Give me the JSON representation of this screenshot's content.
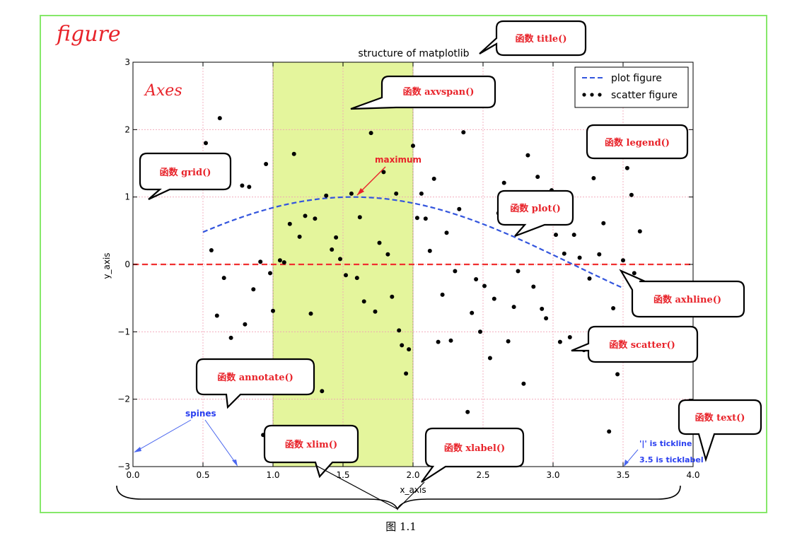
{
  "figure_label": "figure",
  "axes_label": "Axes",
  "caption": "图 1.1",
  "chart_data": {
    "type": "scatter",
    "title": "structure of matplotlib",
    "xlabel": "x_axis",
    "ylabel": "y_axis",
    "xlim": [
      0.0,
      4.0
    ],
    "ylim": [
      -3,
      3
    ],
    "xticks": [
      "0.0",
      "0.5",
      "1.0",
      "1.5",
      "2.0",
      "2.5",
      "3.0",
      "3.5",
      "4.0"
    ],
    "yticks": [
      "3",
      "2",
      "1",
      "0",
      "−1",
      "−2",
      "−3"
    ],
    "grid": true,
    "legend": {
      "position": "upper-right",
      "entries": [
        {
          "label": "plot figure",
          "marker": "dashed-line",
          "color": "#3355dd"
        },
        {
          "label": "scatter figure",
          "marker": "dots",
          "color": "#000000"
        }
      ]
    },
    "axvspan": {
      "xmin": 1.0,
      "xmax": 2.0,
      "color": "#e4f59c"
    },
    "axhline": {
      "y": 0,
      "color": "#f03030",
      "style": "dashed"
    },
    "plot_line": {
      "function": "sin",
      "x_start": 0.5,
      "x_end": 3.5,
      "color": "#3355dd",
      "style": "dashed"
    },
    "annotation": {
      "text": "maximum",
      "x": 1.57,
      "y": 1.0,
      "color": "#e8232a"
    },
    "scatter_points": [
      [
        0.52,
        1.8
      ],
      [
        0.56,
        0.21
      ],
      [
        0.62,
        2.17
      ],
      [
        0.65,
        -0.2
      ],
      [
        0.68,
        1.43
      ],
      [
        0.7,
        -1.09
      ],
      [
        0.78,
        1.17
      ],
      [
        0.83,
        1.15
      ],
      [
        0.86,
        -0.37
      ],
      [
        0.91,
        0.04
      ],
      [
        0.95,
        1.49
      ],
      [
        0.98,
        -0.13
      ],
      [
        1.0,
        -0.69
      ],
      [
        1.05,
        0.06
      ],
      [
        1.08,
        0.03
      ],
      [
        1.12,
        0.6
      ],
      [
        1.15,
        1.64
      ],
      [
        1.19,
        0.41
      ],
      [
        1.23,
        0.72
      ],
      [
        1.27,
        -0.73
      ],
      [
        1.3,
        0.68
      ],
      [
        1.35,
        -1.88
      ],
      [
        1.38,
        1.02
      ],
      [
        1.42,
        0.22
      ],
      [
        1.45,
        0.4
      ],
      [
        1.48,
        0.08
      ],
      [
        1.52,
        -0.16
      ],
      [
        1.56,
        1.05
      ],
      [
        1.6,
        -0.2
      ],
      [
        1.62,
        0.7
      ],
      [
        1.65,
        -0.55
      ],
      [
        1.7,
        1.95
      ],
      [
        1.73,
        -0.7
      ],
      [
        1.76,
        0.32
      ],
      [
        1.79,
        1.37
      ],
      [
        1.82,
        0.15
      ],
      [
        1.85,
        -0.48
      ],
      [
        1.88,
        1.05
      ],
      [
        1.9,
        -0.98
      ],
      [
        1.92,
        -1.2
      ],
      [
        1.95,
        -1.62
      ],
      [
        1.97,
        -1.26
      ],
      [
        2.0,
        1.76
      ],
      [
        2.03,
        0.69
      ],
      [
        2.06,
        1.05
      ],
      [
        2.09,
        0.68
      ],
      [
        2.12,
        0.2
      ],
      [
        2.15,
        1.27
      ],
      [
        2.18,
        -1.15
      ],
      [
        2.21,
        -0.45
      ],
      [
        2.24,
        0.47
      ],
      [
        2.27,
        -1.13
      ],
      [
        2.3,
        -0.1
      ],
      [
        2.33,
        0.82
      ],
      [
        2.36,
        1.96
      ],
      [
        2.39,
        -2.19
      ],
      [
        2.42,
        -0.72
      ],
      [
        2.45,
        -0.22
      ],
      [
        2.48,
        -1.0
      ],
      [
        2.51,
        -0.32
      ],
      [
        2.55,
        -1.39
      ],
      [
        2.58,
        -0.51
      ],
      [
        2.61,
        0.76
      ],
      [
        2.65,
        1.21
      ],
      [
        2.68,
        -1.14
      ],
      [
        2.72,
        -0.63
      ],
      [
        2.75,
        -0.1
      ],
      [
        2.79,
        -1.77
      ],
      [
        2.82,
        1.62
      ],
      [
        2.86,
        -0.33
      ],
      [
        2.89,
        1.3
      ],
      [
        2.92,
        -0.66
      ],
      [
        2.95,
        -0.8
      ],
      [
        2.99,
        1.1
      ],
      [
        3.02,
        0.44
      ],
      [
        3.05,
        -1.15
      ],
      [
        3.08,
        0.16
      ],
      [
        3.12,
        -1.08
      ],
      [
        3.15,
        0.44
      ],
      [
        3.19,
        0.1
      ],
      [
        3.22,
        -1.27
      ],
      [
        3.26,
        -0.21
      ],
      [
        3.29,
        1.28
      ],
      [
        3.33,
        0.15
      ],
      [
        3.36,
        0.61
      ],
      [
        3.4,
        -2.48
      ],
      [
        3.43,
        -0.65
      ],
      [
        3.46,
        -1.63
      ],
      [
        3.5,
        0.06
      ],
      [
        3.53,
        1.43
      ],
      [
        3.56,
        1.03
      ],
      [
        3.58,
        -0.13
      ],
      [
        3.62,
        0.49
      ],
      [
        0.93,
        -2.53
      ],
      [
        0.8,
        -0.89
      ],
      [
        0.6,
        -0.76
      ]
    ]
  },
  "callouts": [
    {
      "id": "title",
      "text": "函数 title()"
    },
    {
      "id": "axvspan",
      "text": "函数 axvspan()"
    },
    {
      "id": "legend",
      "text": "函数 legend()"
    },
    {
      "id": "grid",
      "text": "函数 grid()"
    },
    {
      "id": "plot",
      "text": "函数 plot()"
    },
    {
      "id": "axhline",
      "text": "函数 axhline()"
    },
    {
      "id": "scatter",
      "text": "函数 scatter()"
    },
    {
      "id": "annotate",
      "text": "函数 annotate()"
    },
    {
      "id": "text",
      "text": "函数 text()"
    },
    {
      "id": "xlim",
      "text": "函数 xlim()"
    },
    {
      "id": "xlabel",
      "text": "函数 xlabel()"
    }
  ],
  "notes": {
    "spines": "spines",
    "tickline": "'|' is tickline",
    "ticklabel": "3.5 is ticklabel"
  }
}
